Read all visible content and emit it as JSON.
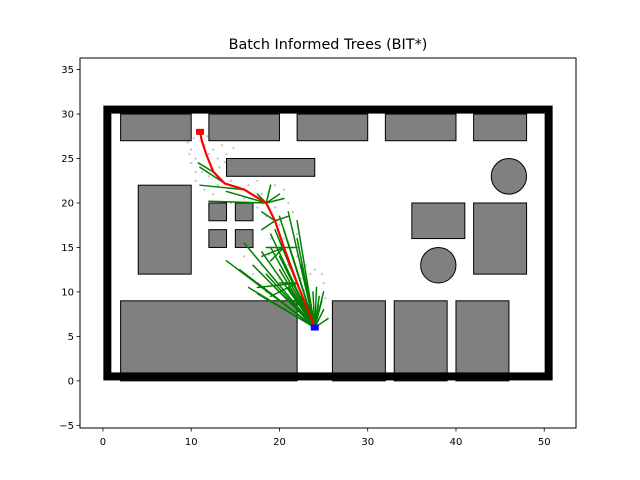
{
  "chart_data": {
    "type": "scatter",
    "title": "Batch Informed Trees (BIT*)",
    "xlabel": "",
    "ylabel": "",
    "xlim": [
      -2.6,
      53.6
    ],
    "ylim": [
      -5.3,
      36.3
    ],
    "xticks": [
      0,
      10,
      20,
      30,
      40,
      50
    ],
    "yticks": [
      -5,
      0,
      5,
      10,
      15,
      20,
      25,
      30,
      35
    ],
    "grid": false,
    "colors": {
      "boundary": "#000000",
      "obstacle_fill": "#808080",
      "obstacle_edge": "#000000",
      "tree": "#008000",
      "path": "#ff0000",
      "start": "#0000ff",
      "goal": "#ff0000",
      "samples": "#c0c0c0"
    },
    "boundary": {
      "x0": 0.5,
      "y0": 0.5,
      "x1": 50.5,
      "y1": 30.5
    },
    "rect_obstacles": [
      {
        "x": 2,
        "y": 27,
        "w": 8,
        "h": 3
      },
      {
        "x": 12,
        "y": 27,
        "w": 8,
        "h": 3
      },
      {
        "x": 22,
        "y": 27,
        "w": 8,
        "h": 3
      },
      {
        "x": 32,
        "y": 27,
        "w": 8,
        "h": 3
      },
      {
        "x": 42,
        "y": 27,
        "w": 6,
        "h": 3
      },
      {
        "x": 14,
        "y": 23,
        "w": 10,
        "h": 2
      },
      {
        "x": 4,
        "y": 12,
        "w": 6,
        "h": 10
      },
      {
        "x": 12,
        "y": 18,
        "w": 2,
        "h": 2
      },
      {
        "x": 15,
        "y": 18,
        "w": 2,
        "h": 2
      },
      {
        "x": 12,
        "y": 15,
        "w": 2,
        "h": 2
      },
      {
        "x": 15,
        "y": 15,
        "w": 2,
        "h": 2
      },
      {
        "x": 35,
        "y": 16,
        "w": 6,
        "h": 4
      },
      {
        "x": 42,
        "y": 12,
        "w": 6,
        "h": 8
      },
      {
        "x": 2,
        "y": 0,
        "w": 20,
        "h": 9
      },
      {
        "x": 26,
        "y": 0,
        "w": 6,
        "h": 9
      },
      {
        "x": 33,
        "y": 0,
        "w": 6,
        "h": 9
      },
      {
        "x": 40,
        "y": 0,
        "w": 6,
        "h": 9
      }
    ],
    "circle_obstacles": [
      {
        "x": 46,
        "y": 23,
        "r": 2
      },
      {
        "x": 38,
        "y": 13,
        "r": 2
      }
    ],
    "start": {
      "x": 24,
      "y": 6
    },
    "goal": {
      "x": 11,
      "y": 28
    },
    "path": [
      [
        24,
        6
      ],
      [
        22,
        11
      ],
      [
        20.5,
        15
      ],
      [
        19.5,
        18
      ],
      [
        18.5,
        20
      ],
      [
        16,
        21.5
      ],
      [
        13.8,
        22.2
      ],
      [
        12.5,
        23.5
      ],
      [
        11.7,
        25.5
      ],
      [
        11.2,
        27
      ],
      [
        11,
        28
      ]
    ],
    "tree_edges": [
      [
        [
          24,
          6
        ],
        [
          23.5,
          9
        ]
      ],
      [
        [
          24,
          6
        ],
        [
          24.5,
          9.5
        ]
      ],
      [
        [
          24,
          6
        ],
        [
          25,
          8
        ]
      ],
      [
        [
          24,
          6
        ],
        [
          23,
          8
        ]
      ],
      [
        [
          24,
          6
        ],
        [
          25.5,
          7
        ]
      ],
      [
        [
          24,
          6
        ],
        [
          22.5,
          7.5
        ]
      ],
      [
        [
          24,
          6
        ],
        [
          24.2,
          10.5
        ]
      ],
      [
        [
          24,
          6
        ],
        [
          25,
          10
        ]
      ],
      [
        [
          24,
          6
        ],
        [
          22,
          11
        ]
      ],
      [
        [
          24,
          6
        ],
        [
          21,
          10.5
        ]
      ],
      [
        [
          24,
          6
        ],
        [
          18,
          14.5
        ]
      ],
      [
        [
          24,
          6
        ],
        [
          16,
          15.5
        ]
      ],
      [
        [
          24,
          6
        ],
        [
          17,
          13
        ]
      ],
      [
        [
          24,
          6
        ],
        [
          15.5,
          12.5
        ]
      ],
      [
        [
          24,
          6
        ],
        [
          14,
          13.5
        ]
      ],
      [
        [
          24,
          6
        ],
        [
          19,
          15
        ]
      ],
      [
        [
          24,
          6
        ],
        [
          20,
          14
        ]
      ],
      [
        [
          24,
          6
        ],
        [
          18.5,
          12
        ]
      ],
      [
        [
          24,
          6
        ],
        [
          19,
          16.5
        ]
      ],
      [
        [
          24,
          6
        ],
        [
          19.5,
          17
        ]
      ],
      [
        [
          24,
          6
        ],
        [
          20,
          18.5
        ]
      ],
      [
        [
          24,
          6
        ],
        [
          20.5,
          17
        ]
      ],
      [
        [
          24,
          6
        ],
        [
          21,
          15.5
        ]
      ],
      [
        [
          24,
          6
        ],
        [
          21.5,
          14
        ]
      ],
      [
        [
          24,
          6
        ],
        [
          22,
          16
        ]
      ],
      [
        [
          24,
          6
        ],
        [
          22.5,
          13
        ]
      ],
      [
        [
          24,
          6
        ],
        [
          21,
          19
        ]
      ],
      [
        [
          24,
          6
        ],
        [
          22,
          18
        ]
      ],
      [
        [
          24,
          6
        ],
        [
          17.5,
          11
        ]
      ],
      [
        [
          24,
          6
        ],
        [
          16.5,
          10.5
        ]
      ],
      [
        [
          24,
          6
        ],
        [
          19,
          11
        ]
      ],
      [
        [
          24,
          6
        ],
        [
          20,
          12.5
        ]
      ],
      [
        [
          22,
          11
        ],
        [
          20.5,
          15
        ]
      ],
      [
        [
          20.5,
          15
        ],
        [
          19.5,
          18
        ]
      ],
      [
        [
          19.5,
          18
        ],
        [
          18.5,
          20
        ]
      ],
      [
        [
          18.5,
          20
        ],
        [
          19,
          22
        ]
      ],
      [
        [
          18.5,
          20
        ],
        [
          20,
          21
        ]
      ],
      [
        [
          18.5,
          20
        ],
        [
          17.5,
          21
        ]
      ],
      [
        [
          18.5,
          20
        ],
        [
          20.5,
          20.5
        ]
      ],
      [
        [
          19.5,
          18
        ],
        [
          18,
          17
        ]
      ],
      [
        [
          19.5,
          18
        ],
        [
          21,
          18.5
        ]
      ],
      [
        [
          20.5,
          15
        ],
        [
          19,
          13.5
        ]
      ],
      [
        [
          20.5,
          15
        ],
        [
          22,
          15
        ]
      ],
      [
        [
          20.5,
          15
        ],
        [
          18.5,
          15
        ]
      ],
      [
        [
          22,
          11
        ],
        [
          19,
          9.5
        ]
      ],
      [
        [
          24,
          6
        ],
        [
          17.5,
          9.8
        ]
      ],
      [
        [
          24,
          6
        ],
        [
          22.5,
          9.5
        ]
      ],
      [
        [
          18.5,
          20
        ],
        [
          12,
          20.2
        ]
      ],
      [
        [
          18.5,
          20
        ],
        [
          14,
          21.3
        ]
      ],
      [
        [
          22,
          11
        ],
        [
          17.5,
          10.5
        ]
      ],
      [
        [
          20.5,
          15
        ],
        [
          18,
          14
        ]
      ],
      [
        [
          19.5,
          18
        ],
        [
          18,
          19
        ]
      ],
      [
        [
          22,
          11
        ],
        [
          20,
          11
        ]
      ],
      [
        [
          16,
          21.5
        ],
        [
          11,
          22
        ]
      ],
      [
        [
          13.8,
          22.2
        ],
        [
          11,
          24
        ]
      ],
      [
        [
          12.5,
          23.5
        ],
        [
          10.8,
          24.5
        ]
      ],
      [
        [
          24,
          6
        ],
        [
          23.8,
          10
        ]
      ],
      [
        [
          24,
          6
        ],
        [
          24.8,
          9
        ]
      ],
      [
        [
          24,
          6
        ],
        [
          23.2,
          9.5
        ]
      ],
      [
        [
          24,
          6
        ],
        [
          24.4,
          8.5
        ]
      ]
    ],
    "samples": [
      [
        10,
        26
      ],
      [
        10.5,
        25
      ],
      [
        11,
        24
      ],
      [
        11.5,
        26.5
      ],
      [
        12,
        25.5
      ],
      [
        12.5,
        26
      ],
      [
        13,
        25
      ],
      [
        13.5,
        26.5
      ],
      [
        14,
        25.5
      ],
      [
        10,
        24.5
      ],
      [
        9.8,
        25.5
      ],
      [
        12.2,
        24.2
      ],
      [
        13.2,
        24
      ],
      [
        11.2,
        23.5
      ],
      [
        10.5,
        22.5
      ],
      [
        12,
        23
      ],
      [
        13,
        22
      ],
      [
        14.5,
        22.5
      ],
      [
        15,
        21.8
      ],
      [
        16.5,
        22
      ],
      [
        17.5,
        22.5
      ],
      [
        18,
        21
      ],
      [
        19.5,
        22
      ],
      [
        20.5,
        21.5
      ],
      [
        21,
        20
      ],
      [
        19.5,
        19.5
      ],
      [
        21.5,
        19
      ],
      [
        20,
        17.5
      ],
      [
        21.5,
        17
      ],
      [
        22,
        16.5
      ],
      [
        19,
        16
      ],
      [
        20.5,
        16
      ],
      [
        22,
        14
      ],
      [
        23,
        13
      ],
      [
        21,
        13
      ],
      [
        23.5,
        12
      ],
      [
        22.5,
        11.5
      ],
      [
        20,
        11.5
      ],
      [
        18.5,
        10
      ],
      [
        19.5,
        10.5
      ],
      [
        21,
        9.5
      ],
      [
        22,
        9
      ],
      [
        23,
        8.5
      ],
      [
        25,
        11
      ],
      [
        24,
        12.5
      ],
      [
        22.8,
        10.2
      ],
      [
        17,
        12
      ],
      [
        18,
        13
      ],
      [
        16,
        14
      ],
      [
        17,
        15
      ],
      [
        15.5,
        16
      ],
      [
        18.5,
        18.5
      ],
      [
        17.5,
        19.5
      ],
      [
        16,
        20.5
      ],
      [
        14.5,
        20
      ],
      [
        12.5,
        21
      ],
      [
        11.5,
        21.5
      ],
      [
        10.5,
        23.5
      ],
      [
        11.8,
        27.5
      ],
      [
        10.3,
        27.3
      ],
      [
        12.8,
        27.6
      ],
      [
        9.6,
        26.8
      ],
      [
        14.8,
        26.2
      ],
      [
        13.8,
        24.6
      ],
      [
        21.8,
        10.6
      ],
      [
        25.2,
        9.3
      ],
      [
        24.8,
        12
      ],
      [
        18.8,
        14.2
      ]
    ]
  }
}
